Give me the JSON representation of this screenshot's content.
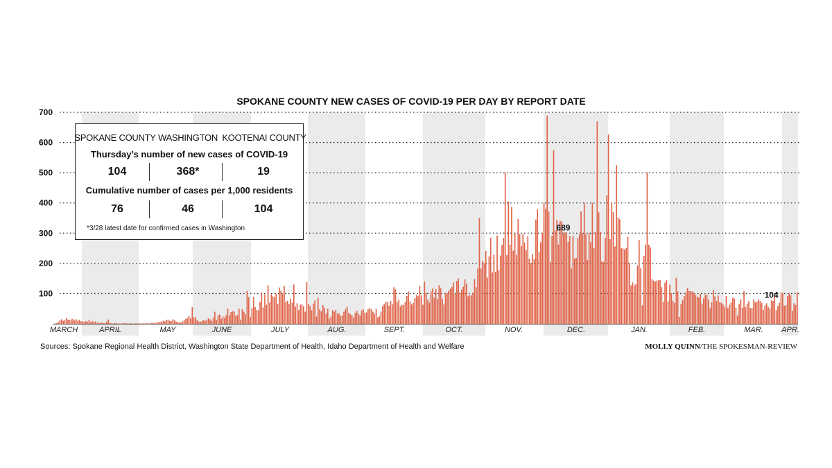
{
  "chart_data": {
    "type": "bar",
    "title": "SPOKANE COUNTY NEW CASES OF COVID-19 PER DAY BY REPORT DATE",
    "ylim": [
      0,
      700
    ],
    "yticks": [
      100,
      200,
      300,
      400,
      500,
      600,
      700
    ],
    "grid": "dotted horizontal",
    "months": [
      "MARCH",
      "APRIL",
      "MAY",
      "JUNE",
      "JULY",
      "AUG.",
      "SEPT.",
      "OCT.",
      "NOV.",
      "DEC.",
      "JAN.",
      "FEB.",
      "MAR.",
      "APR."
    ],
    "series": [
      {
        "values": [
          0,
          1,
          2,
          6,
          12,
          15,
          10,
          13,
          19,
          14,
          12,
          15,
          16,
          11,
          15,
          10,
          13,
          9,
          8,
          6,
          9,
          7,
          12,
          5,
          9,
          6,
          8,
          3,
          5,
          3,
          4,
          2,
          3,
          7,
          14,
          3,
          2,
          1,
          3,
          2,
          1,
          1,
          1,
          2,
          3,
          1,
          2,
          1,
          2,
          1,
          1,
          2,
          1,
          2,
          1,
          1,
          3,
          1,
          2,
          1,
          2,
          3,
          2,
          3,
          4,
          5,
          6,
          7,
          10,
          8,
          12,
          14,
          10,
          9,
          15,
          12,
          7,
          6,
          5,
          4,
          8,
          12,
          16,
          20,
          25,
          18,
          55,
          21,
          22,
          13,
          8,
          7,
          9,
          12,
          10,
          12,
          18,
          15,
          10,
          20,
          40,
          13,
          28,
          31,
          16,
          24,
          20,
          29,
          50,
          28,
          39,
          42,
          40,
          27,
          29,
          50,
          13,
          48,
          40,
          32,
          109,
          88,
          22,
          52,
          89,
          55,
          46,
          45,
          72,
          103,
          54,
          97,
          63,
          128,
          70,
          98,
          91,
          89,
          100,
          66,
          120,
          110,
          98,
          126,
          72,
          76,
          66,
          83,
          70,
          130,
          57,
          68,
          45,
          63,
          64,
          58,
          40,
          138,
          66,
          59,
          45,
          67,
          77,
          24,
          86,
          48,
          41,
          62,
          53,
          34,
          50,
          17,
          24,
          45,
          40,
          46,
          33,
          35,
          26,
          28,
          40,
          48,
          56,
          37,
          32,
          28,
          21,
          36,
          43,
          34,
          28,
          44,
          48,
          36,
          38,
          48,
          52,
          48,
          40,
          33,
          50,
          21,
          25,
          40,
          59,
          65,
          73,
          72,
          60,
          76,
          65,
          121,
          114,
          72,
          80,
          58,
          63,
          62,
          72,
          92,
          107,
          74,
          64,
          69,
          85,
          96,
          91,
          125,
          94,
          63,
          140,
          103,
          80,
          70,
          107,
          117,
          86,
          115,
          82,
          128,
          118,
          83,
          64,
          100,
          102,
          110,
          116,
          122,
          137,
          98,
          142,
          150,
          103,
          113,
          123,
          147,
          133,
          91,
          95,
          94,
          103,
          148,
          121,
          183,
          350,
          183,
          209,
          200,
          241,
          153,
          223,
          285,
          170,
          229,
          172,
          292,
          178,
          226,
          261,
          284,
          501,
          227,
          405,
          262,
          387,
          242,
          301,
          228,
          347,
          297,
          258,
          297,
          269,
          243,
          290,
          215,
          201,
          231,
          215,
          345,
          379,
          237,
          270,
          300,
          400,
          381,
          689,
          372,
          204,
          291,
          575,
          309,
          344,
          262,
          340,
          339,
          300,
          304,
          301,
          271,
          290,
          183,
          290,
          216,
          218,
          284,
          296,
          372,
          301,
          399,
          297,
          211,
          301,
          270,
          400,
          250,
          304,
          670,
          369,
          304,
          206,
          205,
          284,
          426,
          627,
          280,
          400,
          370,
          256,
          525,
          352,
          346,
          250,
          249,
          246,
          251,
          288,
          201,
          127,
          137,
          127,
          131,
          193,
          277,
          184,
          61,
          225,
          262,
          501,
          262,
          253,
          148,
          143,
          140,
          143,
          144,
          145,
          121,
          73,
          136,
          145,
          74,
          130,
          101,
          76,
          69,
          152,
          107,
          23,
          66,
          79,
          92,
          104,
          119,
          108,
          108,
          107,
          103,
          96,
          90,
          87,
          99,
          67,
          84,
          95,
          97,
          80,
          52,
          71,
          112,
          91,
          75,
          93,
          71,
          70,
          64,
          56,
          92,
          52,
          63,
          70,
          86,
          84,
          54,
          27,
          65,
          81,
          53,
          108,
          55,
          67,
          75,
          52,
          52,
          81,
          71,
          73,
          81,
          76,
          69,
          46,
          61,
          68,
          57,
          51,
          77,
          76,
          93,
          45,
          59,
          70,
          104,
          102,
          60,
          62,
          92,
          101,
          94,
          43,
          68,
          62,
          104
        ]
      }
    ],
    "annotations": [
      {
        "label": "689",
        "series_index": 0,
        "point_index": 316
      },
      {
        "label": "104",
        "series_index": 0,
        "point_index": 445
      }
    ]
  },
  "inset": {
    "headers": [
      "SPOKANE COUNTY",
      "WASHINGTON",
      "KOOTENAI COUNTY"
    ],
    "row1_label": "Thursday’s number of new cases of COVID-19",
    "row1_values": [
      "104",
      "368*",
      "19"
    ],
    "row2_label": "Cumulative number of cases per 1,000 residents",
    "row2_values": [
      "76",
      "46",
      "104"
    ],
    "note": "*3/28 latest date for confirmed cases in Washington"
  },
  "source": "Sources: Spokane Regional Health District, Washington State Department of Health, Idaho Department of Health and Welfare",
  "credit": {
    "name": "MOLLY QUINN",
    "org": "/THE SPOKESMAN-REVIEW"
  }
}
